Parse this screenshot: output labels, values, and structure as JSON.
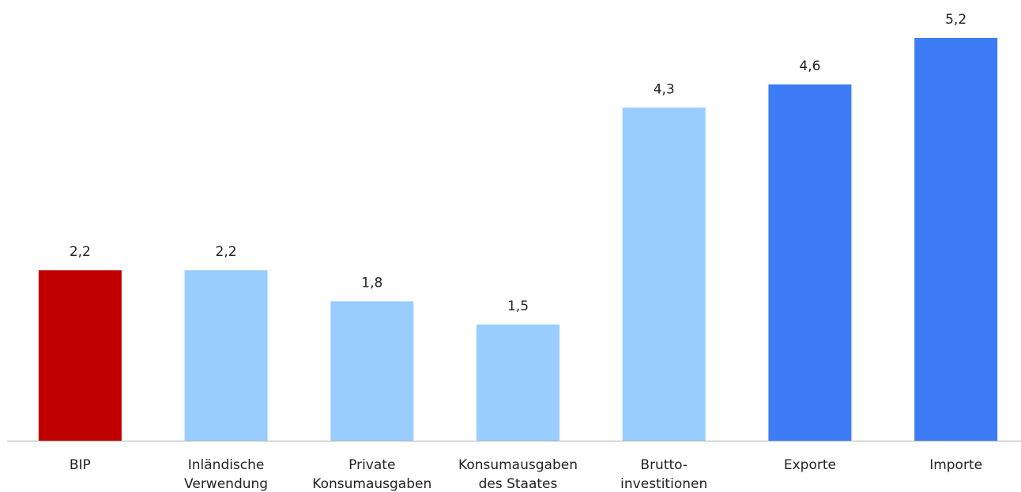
{
  "chart_data": {
    "type": "bar",
    "categories": [
      "BIP",
      "Inländische\nVerwendung",
      "Private\nKonsumausgaben",
      "Konsumausgaben\ndes Staates",
      "Brutto-\ninvestitionen",
      "Exporte",
      "Importe"
    ],
    "values": [
      2.2,
      2.2,
      1.8,
      1.5,
      4.3,
      4.6,
      5.2
    ],
    "value_labels": [
      "2,2",
      "2,2",
      "1,8",
      "1,5",
      "4,3",
      "4,6",
      "5,2"
    ],
    "colors": [
      "#c00000",
      "#99ccff",
      "#99ccff",
      "#99ccff",
      "#99ccff",
      "#3d7cf5",
      "#3d7cf5"
    ]
  }
}
